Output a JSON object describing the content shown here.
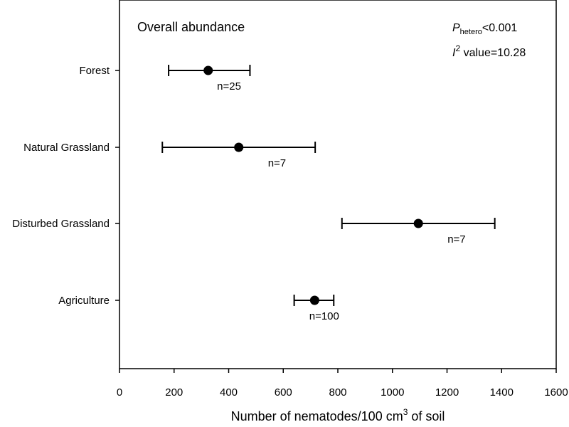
{
  "chart_data": {
    "type": "scatter",
    "panel_title": "Overall abundance",
    "xlabel_main": "Number of nematodes/100 cm",
    "xlabel_sup": "3",
    "xlabel_tail": " of soil",
    "ylabel": "",
    "xlim": [
      0,
      1600
    ],
    "xticks": [
      0,
      200,
      400,
      600,
      800,
      1000,
      1200,
      1400,
      1600
    ],
    "grid": false,
    "stats": {
      "p_symbol": "P",
      "p_sub": "hetero",
      "p_value": "<0.001",
      "i_symbol": "I",
      "i_sup": "2",
      "i_value": " value=10.28"
    },
    "categories": [
      "Forest",
      "Natural Grassland",
      "Disturbed Grassland",
      "Agriculture"
    ],
    "points": [
      {
        "category": "Forest",
        "mean": 325,
        "ci_low": 180,
        "ci_high": 478,
        "n_label": "n=25"
      },
      {
        "category": "Natural Grassland",
        "mean": 437,
        "ci_low": 157,
        "ci_high": 717,
        "n_label": "n=7"
      },
      {
        "category": "Disturbed Grassland",
        "mean": 1095,
        "ci_low": 815,
        "ci_high": 1375,
        "n_label": "n=7"
      },
      {
        "category": "Agriculture",
        "mean": 715,
        "ci_low": 640,
        "ci_high": 785,
        "n_label": "n=100"
      }
    ]
  }
}
